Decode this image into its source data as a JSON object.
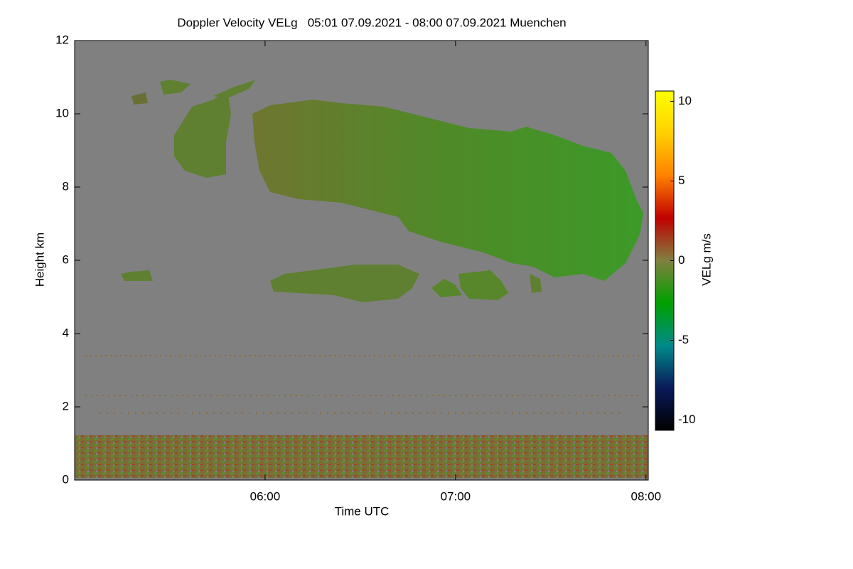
{
  "chart_data": {
    "type": "heatmap",
    "title": "Doppler Velocity VELg   05:01 07.09.2021 - 08:00 07.09.2021 Muenchen",
    "x_label": "Time UTC",
    "y_label": "Height km",
    "xlim": [
      5.0,
      8.012
    ],
    "xticks": [
      {
        "value": 6,
        "label": "06:00"
      },
      {
        "value": 7,
        "label": "07:00"
      },
      {
        "value": 8,
        "label": "08:00"
      }
    ],
    "ylim": [
      0,
      12
    ],
    "yticks": [
      0,
      2,
      4,
      6,
      8,
      10,
      12
    ],
    "background_color": "#808080",
    "colorbar": {
      "label": "VELg m/s",
      "clim": [
        -10.65,
        10.65
      ],
      "ticks": [
        -10,
        -5,
        0,
        5,
        10
      ],
      "colors": [
        "#000000",
        "#0a1a5a",
        "#008a8a",
        "#00a000",
        "#808040",
        "#c00000",
        "#ff8000",
        "#ffd000",
        "#ffff00"
      ]
    }
  }
}
